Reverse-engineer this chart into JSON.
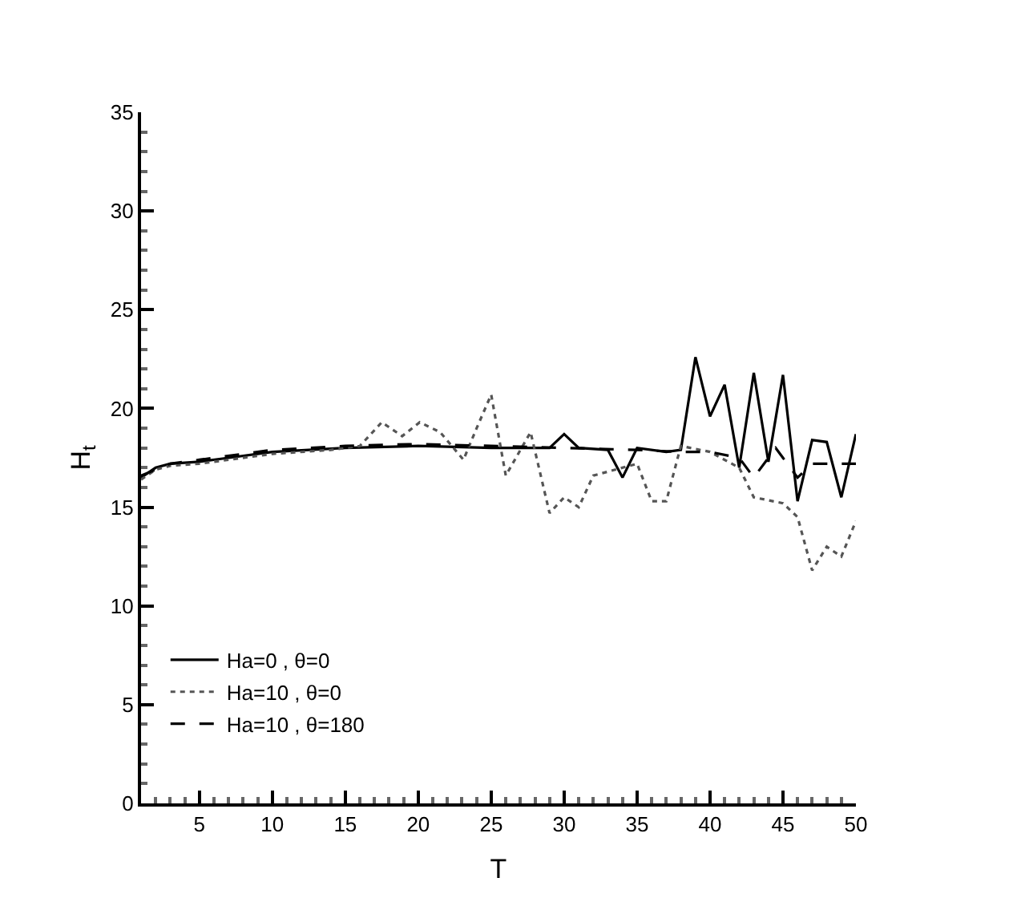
{
  "chart_data": {
    "type": "line",
    "xlabel": "T",
    "ylabel": "H$_{t}$",
    "xlim": [
      1,
      50
    ],
    "xticks": [
      5,
      10,
      15,
      20,
      25,
      30,
      35,
      40,
      45,
      50
    ],
    "ylim": [
      0,
      35
    ],
    "yticks": [
      0,
      5,
      10,
      15,
      20,
      25,
      30,
      35
    ],
    "legend": "bottom left",
    "marker": "none",
    "series": [
      {
        "name": "Ha=0 , θ=0",
        "color": "#000000",
        "line_style": "solid",
        "x": [
          1,
          2,
          3,
          5,
          7,
          10,
          15,
          20,
          25,
          28,
          29,
          30,
          31,
          33,
          34,
          35,
          37,
          38,
          39,
          40,
          41,
          42,
          43,
          44,
          45,
          46,
          47,
          48,
          49,
          50
        ],
        "values": [
          16.5,
          17.0,
          17.2,
          17.3,
          17.5,
          17.8,
          18.0,
          18.1,
          18.0,
          18.0,
          18.0,
          18.7,
          18.0,
          17.9,
          16.5,
          18.0,
          17.8,
          17.9,
          22.6,
          19.6,
          21.2,
          17.0,
          21.8,
          17.3,
          21.7,
          15.3,
          18.4,
          18.3,
          15.5,
          18.7
        ]
      },
      {
        "name": "Ha=10 , θ=0",
        "color": "#555555",
        "line_style": "dotted",
        "x": [
          1,
          2,
          3,
          5,
          7,
          10,
          14,
          16,
          17.5,
          18.9,
          20.1,
          21.5,
          23.1,
          24,
          25,
          26,
          27.7,
          29,
          30,
          31,
          32,
          33.5,
          35,
          36,
          37,
          38,
          40,
          42,
          43,
          45,
          46,
          47,
          48,
          49,
          50
        ],
        "values": [
          16.4,
          16.9,
          17.1,
          17.2,
          17.4,
          17.7,
          17.9,
          18.1,
          19.3,
          18.6,
          19.3,
          18.8,
          17.4,
          19.0,
          20.7,
          16.6,
          18.8,
          14.7,
          15.5,
          15.0,
          16.6,
          16.9,
          17.2,
          15.3,
          15.3,
          18.1,
          17.8,
          17.0,
          15.5,
          15.2,
          14.5,
          11.8,
          13.0,
          12.5,
          14.3
        ]
      },
      {
        "name": "Ha=10 , θ=180",
        "color": "#000000",
        "line_style": "dashed",
        "x": [
          1,
          3,
          5,
          10,
          15,
          20,
          25,
          30,
          35,
          38,
          40,
          42,
          43,
          44,
          44.5,
          45,
          46,
          47,
          50
        ],
        "values": [
          16.6,
          17.2,
          17.4,
          17.9,
          18.1,
          18.2,
          18.1,
          18.0,
          17.9,
          17.8,
          17.8,
          17.5,
          16.5,
          17.5,
          18.0,
          17.5,
          16.5,
          17.2,
          17.2
        ]
      }
    ]
  }
}
